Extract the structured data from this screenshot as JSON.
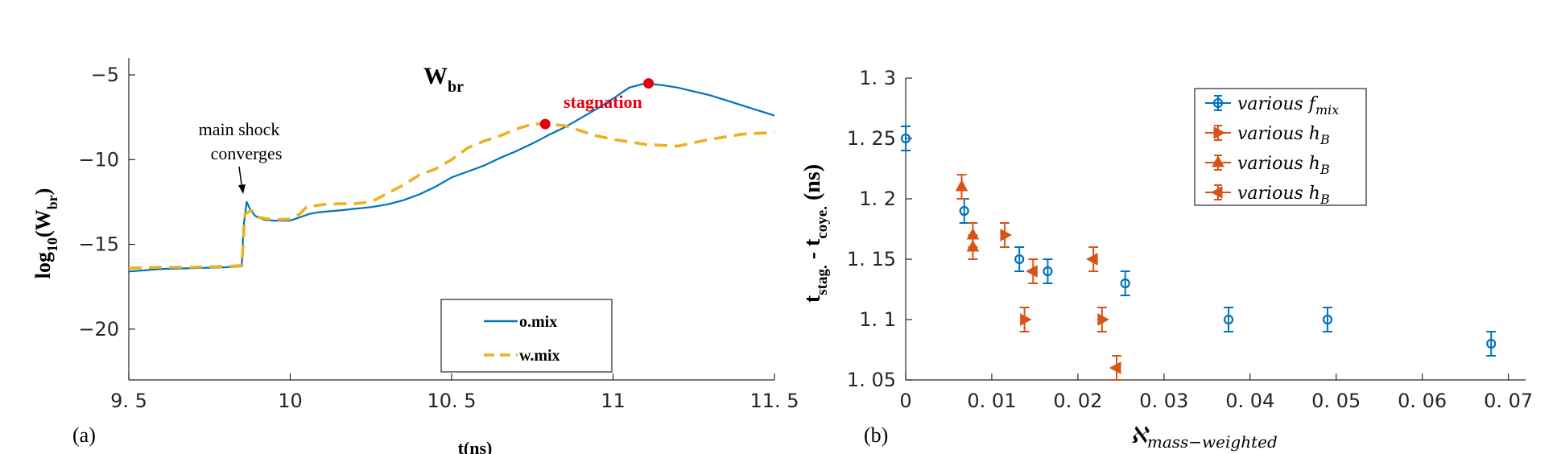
{
  "chart_data": [
    {
      "type": "line",
      "panel_label": "(a)",
      "title": "W_br",
      "title_main": "W",
      "title_sub": "br",
      "xlabel": "t(ns)",
      "ylabel_prefix": "log",
      "ylabel_sub": "10",
      "ylabel_mid": "(W",
      "ylabel_sub2": "br",
      "ylabel_suffix": ")",
      "xlim": [
        9.5,
        11.5
      ],
      "ylim": [
        -23,
        -4
      ],
      "xticks": [
        9.5,
        10,
        10.5,
        11,
        11.5
      ],
      "xtick_labels": [
        "9. 5",
        "10",
        "10. 5",
        "11",
        "11. 5"
      ],
      "yticks": [
        -5,
        -10,
        -15,
        -20
      ],
      "ytick_labels": [
        "−5",
        "−10",
        "−15",
        "−20"
      ],
      "legend_location": "lower-right",
      "annotations": [
        {
          "text_line1": "main shock",
          "text_line2": "converges",
          "arrow_to": [
            9.85,
            -12.6
          ]
        },
        {
          "text": "stagnation",
          "color": "#e3000f"
        }
      ],
      "stagnation_points": [
        [
          10.79,
          -7.9
        ],
        [
          11.11,
          -5.5
        ]
      ],
      "series": [
        {
          "name": "o.mix",
          "color": "#0072bd",
          "style": "solid",
          "x": [
            9.5,
            9.6,
            9.7,
            9.8,
            9.85,
            9.855,
            9.865,
            9.875,
            9.89,
            9.9,
            9.92,
            9.95,
            9.98,
            10.0,
            10.03,
            10.06,
            10.09,
            10.12,
            10.15,
            10.2,
            10.25,
            10.3,
            10.35,
            10.4,
            10.45,
            10.5,
            10.55,
            10.6,
            10.65,
            10.7,
            10.75,
            10.8,
            10.85,
            10.9,
            10.95,
            11.0,
            11.05,
            11.1,
            11.15,
            11.2,
            11.3,
            11.4,
            11.5
          ],
          "y": [
            -16.6,
            -16.45,
            -16.4,
            -16.35,
            -16.3,
            -14.0,
            -12.5,
            -12.9,
            -13.3,
            -13.4,
            -13.55,
            -13.6,
            -13.6,
            -13.6,
            -13.4,
            -13.2,
            -13.1,
            -13.05,
            -13.0,
            -12.9,
            -12.8,
            -12.65,
            -12.4,
            -12.05,
            -11.6,
            -11.05,
            -10.7,
            -10.35,
            -9.9,
            -9.5,
            -9.05,
            -8.55,
            -8.1,
            -7.55,
            -7.0,
            -6.4,
            -5.75,
            -5.5,
            -5.6,
            -5.75,
            -6.2,
            -6.8,
            -7.4
          ]
        },
        {
          "name": "w.mix",
          "color": "#edb120",
          "style": "dashed",
          "x": [
            9.5,
            9.6,
            9.7,
            9.8,
            9.85,
            9.86,
            9.88,
            9.9,
            9.95,
            10.0,
            10.03,
            10.05,
            10.1,
            10.15,
            10.2,
            10.25,
            10.3,
            10.35,
            10.4,
            10.45,
            10.5,
            10.55,
            10.6,
            10.65,
            10.7,
            10.75,
            10.8,
            10.85,
            10.9,
            10.95,
            11.0,
            11.1,
            11.2,
            11.3,
            11.4,
            11.5
          ],
          "y": [
            -16.4,
            -16.35,
            -16.35,
            -16.3,
            -16.25,
            -13.2,
            -13.0,
            -13.4,
            -13.55,
            -13.5,
            -13.2,
            -12.8,
            -12.65,
            -12.6,
            -12.6,
            -12.5,
            -12.0,
            -11.5,
            -10.9,
            -10.55,
            -10.0,
            -9.3,
            -8.9,
            -8.6,
            -8.2,
            -7.9,
            -7.9,
            -8.0,
            -8.3,
            -8.6,
            -8.8,
            -9.1,
            -9.2,
            -8.8,
            -8.5,
            -8.4
          ]
        }
      ]
    },
    {
      "type": "scatter",
      "panel_label": "(b)",
      "xlabel": "ℵ",
      "xlabel_sub": "mass−weighted",
      "ylabel_t": "t",
      "ylabel_sub1": "stag.",
      "ylabel_mid": " - t",
      "ylabel_sub2": "coye.",
      "ylabel_unit": " (ns)",
      "xlim": [
        0,
        0.072
      ],
      "ylim": [
        1.05,
        1.3
      ],
      "xticks": [
        0,
        0.01,
        0.02,
        0.03,
        0.04,
        0.05,
        0.06,
        0.07
      ],
      "xtick_labels": [
        "0",
        "0. 01",
        "0. 02",
        "0. 03",
        "0. 04",
        "0. 05",
        "0. 06",
        "0. 07"
      ],
      "yticks": [
        1.05,
        1.1,
        1.15,
        1.2,
        1.25,
        1.3
      ],
      "ytick_labels": [
        "1. 05",
        "1. 1",
        "1. 15",
        "1. 2",
        "1. 25",
        "1. 3"
      ],
      "legend_location": "top-right",
      "series": [
        {
          "name_prefix": "various ",
          "name_var": "f",
          "name_sub": "mix",
          "marker": "circle",
          "color": "#0072bd",
          "points": [
            [
              0.0,
              1.25,
              0.01
            ],
            [
              0.0068,
              1.19,
              0.01
            ],
            [
              0.0132,
              1.15,
              0.01
            ],
            [
              0.0165,
              1.14,
              0.01
            ],
            [
              0.0255,
              1.13,
              0.01
            ],
            [
              0.0375,
              1.1,
              0.01
            ],
            [
              0.049,
              1.1,
              0.01
            ],
            [
              0.068,
              1.08,
              0.01
            ]
          ]
        },
        {
          "name_prefix": "various ",
          "name_var": "h",
          "name_sub": "B",
          "marker": "triangle-right",
          "color": "#d95319",
          "points": [
            [
              0.0115,
              1.17,
              0.01
            ],
            [
              0.0138,
              1.1,
              0.01
            ],
            [
              0.0228,
              1.1,
              0.01
            ]
          ]
        },
        {
          "name_prefix": "various ",
          "name_var": "h",
          "name_sub": "B",
          "marker": "triangle-up",
          "color": "#d95319",
          "points": [
            [
              0.0065,
              1.21,
              0.01
            ],
            [
              0.0078,
              1.17,
              0.01
            ],
            [
              0.0078,
              1.16,
              0.01
            ]
          ]
        },
        {
          "name_prefix": "various ",
          "name_var": "h",
          "name_sub": "B",
          "marker": "triangle-left",
          "color": "#d95319",
          "points": [
            [
              0.0148,
              1.14,
              0.01
            ],
            [
              0.0218,
              1.15,
              0.01
            ],
            [
              0.0245,
              1.06,
              0.01
            ]
          ]
        }
      ]
    }
  ]
}
